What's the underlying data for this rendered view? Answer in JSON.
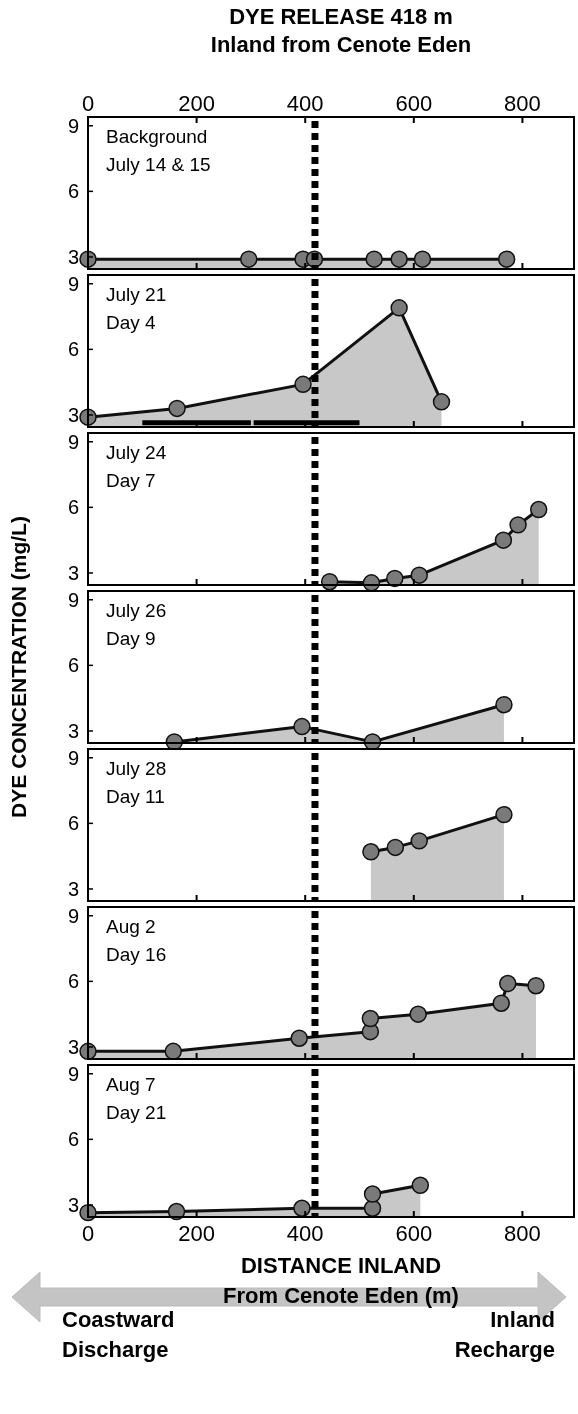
{
  "chart_data": [
    {
      "type": "area",
      "title": "DYE RELEASE 418 m\nInland  from Cenote Eden",
      "annotations": [
        "Background\nJuly 14 & 15"
      ],
      "marker": "circle",
      "line_style": "solid",
      "tick_labels": "y",
      "xlim": [
        0,
        895
      ],
      "xticks": [
        0,
        200,
        400,
        600,
        800
      ],
      "x2lim": [
        0,
        895
      ],
      "x2ticks": [
        0,
        200,
        400,
        600,
        800
      ],
      "ylim": [
        2.45,
        9.4
      ],
      "yticks": [
        3,
        6,
        9
      ],
      "ref_lines": [
        {
          "axis": "x",
          "value": 418,
          "color": "#000000",
          "line_style": "dashed"
        }
      ],
      "series": [
        {
          "color": "#c8c8c8",
          "x": [
            0,
            296,
            396,
            417,
            527,
            573,
            616,
            771
          ],
          "values": [
            2.9,
            2.9,
            2.9,
            2.9,
            2.9,
            2.9,
            2.9,
            2.9
          ]
        }
      ]
    },
    {
      "type": "area",
      "annotations": [
        "July 21\nDay 4"
      ],
      "marker": "circle",
      "line_style": "solid",
      "tick_labels": "y",
      "xlim": [
        0,
        895
      ],
      "xticks": [
        0,
        200,
        400,
        600,
        800
      ],
      "ylim": [
        2.45,
        9.4
      ],
      "yticks": [
        3,
        6,
        9
      ],
      "ref_lines": [
        {
          "axis": "x",
          "value": 418,
          "color": "#000000",
          "line_style": "dashed"
        }
      ],
      "series": [
        {
          "color": "#c8c8c8",
          "x": [
            0,
            164,
            396,
            573,
            651
          ],
          "values": [
            2.9,
            3.3,
            4.4,
            7.9,
            3.6
          ]
        },
        {
          "type": "line",
          "marker": "none",
          "color": "#000000",
          "x": [
            100,
            300,
            302,
            305,
            500
          ],
          "values": [
            2.65,
            2.65,
            null,
            2.65,
            2.65
          ]
        }
      ]
    },
    {
      "type": "area",
      "annotations": [
        "July 24\nDay 7"
      ],
      "marker": "circle",
      "line_style": "solid",
      "tick_labels": "y",
      "xlim": [
        0,
        895
      ],
      "xticks": [
        0,
        200,
        400,
        600,
        800
      ],
      "ylim": [
        2.45,
        9.4
      ],
      "yticks": [
        3,
        6,
        9
      ],
      "ref_lines": [
        {
          "axis": "x",
          "value": 418,
          "color": "#000000",
          "line_style": "dashed"
        }
      ],
      "series": [
        {
          "color": "#c8c8c8",
          "x": [
            445,
            522,
            565,
            610,
            765,
            792,
            830
          ],
          "values": [
            2.6,
            2.55,
            2.75,
            2.9,
            4.5,
            5.2,
            5.9
          ]
        }
      ]
    },
    {
      "type": "area",
      "ylabel": "DYE CONCENTRATION (mg/L)",
      "annotations": [
        "July 26\nDay 9"
      ],
      "marker": "circle",
      "line_style": "solid",
      "tick_labels": "y",
      "xlim": [
        0,
        895
      ],
      "xticks": [
        0,
        200,
        400,
        600,
        800
      ],
      "ylim": [
        2.45,
        9.4
      ],
      "yticks": [
        3,
        6,
        9
      ],
      "ref_lines": [
        {
          "axis": "x",
          "value": 418,
          "color": "#000000",
          "line_style": "dashed"
        }
      ],
      "series": [
        {
          "color": "#c8c8c8",
          "x": [
            159,
            394,
            524,
            766
          ],
          "values": [
            2.5,
            3.2,
            2.5,
            4.2
          ]
        }
      ]
    },
    {
      "type": "area",
      "annotations": [
        "July 28\nDay 11"
      ],
      "marker": "circle",
      "line_style": "solid",
      "tick_labels": "y",
      "xlim": [
        0,
        895
      ],
      "xticks": [
        0,
        200,
        400,
        600,
        800
      ],
      "ylim": [
        2.45,
        9.4
      ],
      "yticks": [
        3,
        6,
        9
      ],
      "ref_lines": [
        {
          "axis": "x",
          "value": 418,
          "color": "#000000",
          "line_style": "dashed"
        }
      ],
      "series": [
        {
          "color": "#c8c8c8",
          "x": [
            521,
            566,
            610,
            766
          ],
          "values": [
            4.7,
            4.9,
            5.2,
            6.4
          ]
        }
      ]
    },
    {
      "type": "area",
      "annotations": [
        "Aug 2\nDay 16"
      ],
      "marker": "circle",
      "line_style": "solid",
      "tick_labels": "y",
      "xlim": [
        0,
        895
      ],
      "xticks": [
        0,
        200,
        400,
        600,
        800
      ],
      "ylim": [
        2.45,
        9.4
      ],
      "yticks": [
        3,
        6,
        9
      ],
      "ref_lines": [
        {
          "axis": "x",
          "value": 418,
          "color": "#000000",
          "line_style": "dashed"
        }
      ],
      "series": [
        {
          "color": "#c8c8c8",
          "x": [
            0,
            157,
            389,
            520,
            520,
            608,
            761,
            773,
            825
          ],
          "values": [
            2.8,
            2.8,
            3.4,
            3.7,
            4.3,
            4.5,
            5.0,
            5.9,
            5.8
          ]
        }
      ]
    },
    {
      "type": "area",
      "xlabel": "DISTANCE INLAND\nFrom Cenote Eden (m)",
      "annotations": [
        "Aug 7\nDay 21",
        "Coastward\nDischarge",
        "Inland\nRecharge"
      ],
      "marker": "circle",
      "line_style": "solid",
      "xlim": [
        0,
        895
      ],
      "xticks": [
        0,
        200,
        400,
        600,
        800
      ],
      "ylim": [
        2.45,
        9.4
      ],
      "yticks": [
        3,
        6,
        9
      ],
      "ref_lines": [
        {
          "axis": "x",
          "value": 418,
          "color": "#000000",
          "line_style": "dashed"
        }
      ],
      "series": [
        {
          "color": "#c8c8c8",
          "x": [
            0,
            163,
            394,
            524,
            524,
            612
          ],
          "values": [
            2.65,
            2.7,
            2.85,
            2.85,
            3.5,
            3.9
          ]
        }
      ]
    }
  ]
}
